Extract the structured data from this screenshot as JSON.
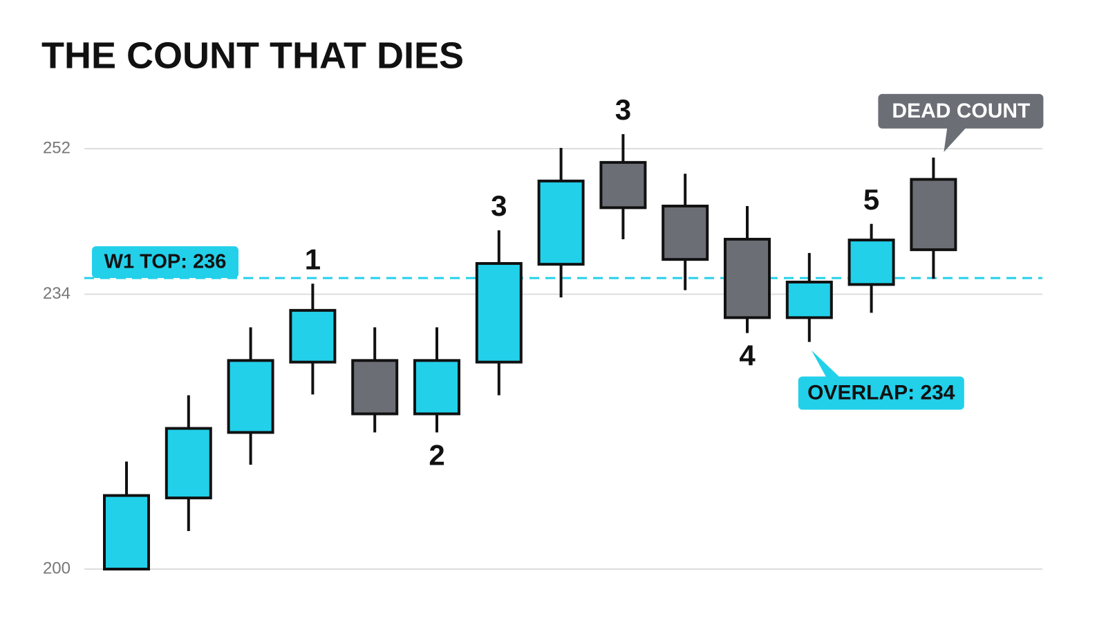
{
  "chart_data": {
    "type": "candlestick",
    "title": "THE COUNT THAT DIES",
    "ylim": [
      200,
      252
    ],
    "yticks": [
      200,
      234,
      252
    ],
    "grid": true,
    "up_color": "#22d0ea",
    "down_color": "#6b6e75",
    "open": [
      200,
      208.8,
      216.9,
      225.6,
      225.8,
      219.2,
      225.6,
      237.7,
      250.3,
      244.9,
      240.8,
      231.1,
      235.2,
      248.2
    ],
    "high": [
      213.3,
      221.5,
      229.9,
      235.3,
      229.9,
      229.9,
      241.9,
      252.1,
      253.8,
      248.9,
      244.9,
      239.1,
      242.7,
      250.9
    ],
    "low": [
      200,
      204.7,
      212.9,
      221.6,
      216.9,
      216.9,
      221.5,
      233.6,
      240.8,
      234.5,
      229.2,
      228.1,
      231.7,
      235.9
    ],
    "close": [
      209.1,
      217.4,
      225.8,
      232,
      219.2,
      225.8,
      237.8,
      248,
      244.7,
      238.3,
      231.1,
      235.5,
      240.7,
      239.5
    ],
    "wave_labels": [
      "1",
      "2",
      "3",
      "3",
      "4",
      "5"
    ],
    "reference_line": {
      "label": "W1 TOP: 236",
      "value": 236,
      "color": "#22d0ea"
    },
    "overlap_callout": "OVERLAP: 234",
    "dead_callout": "DEAD COUNT"
  }
}
